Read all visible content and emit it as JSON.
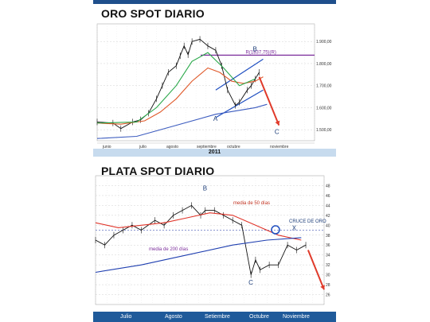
{
  "chart_data": [
    {
      "type": "line",
      "title": "ORO SPOT DIARIO",
      "year_label": "2011",
      "ylim": [
        1450,
        1980
      ],
      "yticks": [
        1500,
        1600,
        1700,
        1800,
        1900
      ],
      "ytick_labels": [
        "1.500,00",
        "1.600,00",
        "1.700,00",
        "1.800,00",
        "1.900,00"
      ],
      "month_labels": [
        "junio",
        "julio",
        "agosto",
        "septiembre",
        "octubre",
        "noviembre"
      ],
      "n_days": 110,
      "series": [
        {
          "name": "",
          "color": "#111111",
          "x": [
            0,
            8,
            12,
            18,
            22,
            26,
            30,
            33,
            36,
            40,
            42,
            44,
            46,
            48,
            52,
            56,
            60,
            63,
            66,
            70,
            72,
            76,
            78,
            80,
            82
          ],
          "values": [
            1535,
            1530,
            1505,
            1535,
            1545,
            1575,
            1640,
            1700,
            1760,
            1790,
            1835,
            1880,
            1840,
            1900,
            1910,
            1880,
            1860,
            1790,
            1680,
            1610,
            1625,
            1680,
            1700,
            1730,
            1760
          ]
        },
        {
          "name": "",
          "color": "#e05a2b",
          "x": [
            0,
            12,
            24,
            32,
            40,
            48,
            56,
            62,
            68,
            74,
            80,
            84
          ],
          "values": [
            1530,
            1525,
            1540,
            1580,
            1640,
            1720,
            1780,
            1760,
            1720,
            1710,
            1720,
            1740
          ]
        },
        {
          "name": "",
          "color": "#2aa84a",
          "x": [
            0,
            20,
            30,
            40,
            48,
            56,
            64,
            72,
            80
          ],
          "values": [
            1530,
            1535,
            1600,
            1700,
            1810,
            1850,
            1780,
            1700,
            1730
          ]
        },
        {
          "name": "",
          "color": "#3b5bbf",
          "x": [
            0,
            20,
            40,
            60,
            80,
            86
          ],
          "values": [
            1460,
            1470,
            1520,
            1570,
            1600,
            1615
          ]
        }
      ],
      "reference_line": {
        "value": 1838,
        "label": "R(1837,75)(R)",
        "color": "#7b2d9b"
      },
      "channel": {
        "color": "#1f4fc1",
        "lower": [
          [
            60,
            1555
          ],
          [
            84,
            1680
          ]
        ],
        "upper": [
          [
            60,
            1680
          ],
          [
            84,
            1820
          ]
        ]
      },
      "forecast": {
        "color": "#e03a2a",
        "from": [
          82,
          1740
        ],
        "to": [
          92,
          1520
        ]
      },
      "points": [
        {
          "label": "A",
          "x": 60,
          "y": 1540
        },
        {
          "label": "B",
          "x": 80,
          "y": 1855
        },
        {
          "label": "C",
          "x": 91,
          "y": 1480
        }
      ]
    },
    {
      "type": "line",
      "title": "PLATA SPOT DIARIO",
      "ylim": [
        24,
        50
      ],
      "yticks": [
        26,
        28,
        30,
        32,
        34,
        36,
        38,
        40,
        42,
        44,
        46,
        48
      ],
      "month_labels": [
        "Julio",
        "Agosto",
        "Setiembre",
        "Octubre",
        "Noviembre"
      ],
      "n_days": 100,
      "series": [
        {
          "name": "",
          "color": "#111111",
          "x": [
            0,
            4,
            8,
            12,
            16,
            20,
            26,
            30,
            34,
            38,
            42,
            46,
            48,
            52,
            56,
            60,
            64,
            68,
            70,
            72,
            76,
            80,
            84,
            88,
            92
          ],
          "values": [
            37,
            36,
            38,
            39,
            40,
            39,
            41,
            40,
            42,
            43,
            44,
            42,
            43,
            43,
            42,
            41,
            40,
            30,
            33,
            31,
            32,
            32,
            36,
            35,
            36
          ]
        },
        {
          "name": "media de 50 días",
          "color": "#e0352a",
          "x": [
            0,
            10,
            20,
            30,
            40,
            50,
            60,
            70,
            80,
            90
          ],
          "values": [
            40.5,
            39.5,
            40,
            40.5,
            41.5,
            42.5,
            42,
            40,
            38,
            37
          ]
        },
        {
          "name": "media de 200 días",
          "color": "#1f3fb0",
          "x": [
            0,
            20,
            40,
            60,
            75,
            90
          ],
          "values": [
            30.5,
            32,
            34,
            36,
            37,
            37.5
          ]
        }
      ],
      "reference_line": {
        "value": 39,
        "color": "#7a86c9"
      },
      "forecast": {
        "color": "#e03a2a",
        "from": [
          93,
          35
        ],
        "to": [
          100,
          27
        ]
      },
      "annotations": [
        {
          "text": "media de 50 días",
          "color": "#c0311f"
        },
        {
          "text": "media de 200 días",
          "color": "#7b2d9b"
        },
        {
          "text": "CRUCE DE ORO",
          "color": "#1f3f7a"
        }
      ],
      "points": [
        {
          "label": "B",
          "x": 48,
          "y": 47
        },
        {
          "label": "C",
          "x": 68,
          "y": 28
        },
        {
          "label": "X",
          "x": 87,
          "y": 39
        }
      ]
    }
  ]
}
